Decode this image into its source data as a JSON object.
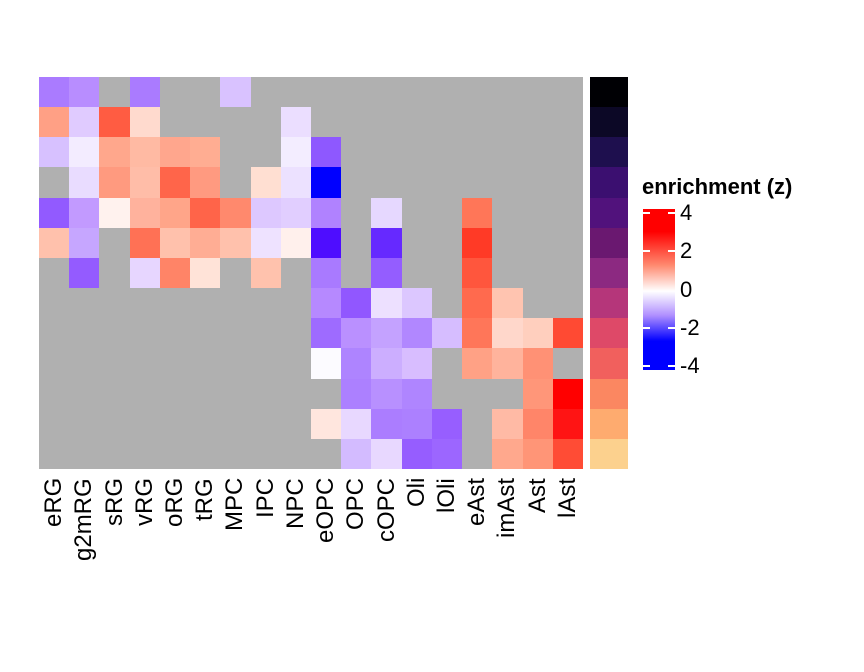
{
  "chart_data": {
    "type": "heatmap",
    "title": "",
    "xlabel": "",
    "ylabel": "",
    "columns": [
      "eRG",
      "g2mRG",
      "sRG",
      "vRG",
      "oRG",
      "tRG",
      "MPC",
      "IPC",
      "NPC",
      "eOPC",
      "OPC",
      "cOPC",
      "Oli",
      "lOli",
      "eAst",
      "imAst",
      "Ast",
      "lAst"
    ],
    "row_count": 13,
    "na_color": "#b0b0b0",
    "legend": {
      "title": "enrichment (z)",
      "ticks": [
        4,
        2,
        0,
        -2,
        -4
      ],
      "tick_labels": [
        "4",
        "2",
        "0",
        "-2",
        "-4"
      ],
      "range": [
        -4.2,
        4.2
      ],
      "colors": {
        "low": "#0000ff",
        "mid": "#ffffff",
        "high": "#ff0000"
      }
    },
    "cell_colors": [
      [
        "#AA7BFF",
        "#B88DFF",
        null,
        "#AA7BFF",
        null,
        null,
        "#D9C2FF",
        null,
        null,
        null,
        null,
        null,
        null,
        null,
        null,
        null,
        null,
        null
      ],
      [
        "#FFA085",
        "#E0CBFF",
        "#FF5C42",
        "#FFDACE",
        null,
        null,
        null,
        null,
        "#EBDEFF",
        null,
        null,
        null,
        null,
        null,
        null,
        null,
        null,
        null
      ],
      [
        "#D7C1FF",
        "#F3ECFF",
        "#FFA78C",
        "#FFBAA3",
        "#FFA68D",
        "#FFAD92",
        null,
        null,
        "#F3EDFF",
        "#8E58FF",
        null,
        null,
        null,
        null,
        null,
        null,
        null,
        null
      ],
      [
        null,
        "#E9DCFF",
        "#FF9A7F",
        "#FFBDA8",
        "#FF654A",
        "#FF9A80",
        null,
        "#FFDFD2",
        "#ECE1FF",
        "#0000FF",
        null,
        null,
        null,
        null,
        null,
        null,
        null,
        null
      ],
      [
        "#925AFF",
        "#C29AFF",
        "#FFF2EE",
        "#FFB29D",
        "#FFA589",
        "#FF6449",
        "#FF896D",
        "#DDC8FF",
        "#E1CEFF",
        "#B082FF",
        null,
        "#E6D8FF",
        null,
        null,
        "#FF7658",
        null,
        null,
        null
      ],
      [
        "#FFC1AC",
        "#C6A6FF",
        null,
        "#FF7155",
        "#FFC1AC",
        "#FFAD94",
        "#FFC1AC",
        "#EEE2FF",
        "#FFF0EC",
        "#4E0DFF",
        null,
        "#6629FF",
        null,
        null,
        "#FF3A26",
        null,
        null,
        null
      ],
      [
        null,
        "#945BFF",
        null,
        "#E7D6FF",
        "#FF8467",
        "#FFE3D8",
        null,
        "#FFC2AD",
        null,
        "#A97AFF",
        null,
        "#945DFF",
        null,
        null,
        "#FF563D",
        null,
        null,
        null
      ],
      [
        null,
        null,
        null,
        null,
        null,
        null,
        null,
        null,
        null,
        "#B689FF",
        "#9157FF",
        "#EDE0FF",
        "#DCC7FF",
        null,
        "#FF6A4E",
        "#FFC4B0",
        null,
        null
      ],
      [
        null,
        null,
        null,
        null,
        null,
        null,
        null,
        null,
        null,
        "#9E6BFF",
        "#BA90FF",
        "#C4A2FF",
        "#B187FF",
        "#D6BDFF",
        "#FF7659",
        "#FFD7CB",
        "#FFCFBE",
        "#FF4A33"
      ],
      [
        null,
        null,
        null,
        null,
        null,
        null,
        null,
        null,
        null,
        "#FCFBFF",
        "#AE84FF",
        "#CCAEFF",
        "#D8BDFF",
        null,
        "#FFA185",
        "#FFB39C",
        "#FF9175",
        null
      ],
      [
        null,
        null,
        null,
        null,
        null,
        null,
        null,
        null,
        null,
        null,
        "#AC80FF",
        "#B890FF",
        "#AF85FF",
        null,
        null,
        null,
        "#FF9679",
        "#FF0000"
      ],
      [
        null,
        null,
        null,
        null,
        null,
        null,
        null,
        null,
        null,
        "#FFE6DE",
        "#E8D8FF",
        "#AB7DFF",
        "#AC80FF",
        "#975EFF",
        null,
        "#FFBAA5",
        "#FF8569",
        "#FF1414"
      ],
      [
        null,
        null,
        null,
        null,
        null,
        null,
        null,
        null,
        null,
        null,
        "#D3BBFF",
        "#E8D8FF",
        "#965DFF",
        "#9C66FF",
        null,
        "#FFA88D",
        "#FF9577",
        "#FF4C35"
      ]
    ],
    "values_estimated": [
      [
        -1.5,
        -1.2,
        null,
        -1.5,
        null,
        null,
        -0.7,
        null,
        null,
        null,
        null,
        null,
        null,
        null,
        null,
        null,
        null,
        null
      ],
      [
        1.5,
        -0.6,
        3.0,
        0.6,
        null,
        null,
        null,
        null,
        -0.4,
        null,
        null,
        null,
        null,
        null,
        null,
        null,
        null,
        null
      ],
      [
        -0.7,
        -0.2,
        1.4,
        1.1,
        1.4,
        1.3,
        null,
        null,
        -0.2,
        -2.2,
        null,
        null,
        null,
        null,
        null,
        null,
        null,
        null
      ],
      [
        null,
        -0.3,
        1.6,
        1.0,
        2.8,
        1.6,
        null,
        0.5,
        -0.4,
        -4.0,
        null,
        null,
        null,
        null,
        null,
        null,
        null,
        null
      ],
      [
        -2.1,
        -1.0,
        0.2,
        1.2,
        1.4,
        2.8,
        1.9,
        -0.6,
        -0.5,
        -1.3,
        null,
        -0.4,
        null,
        null,
        2.4,
        null,
        null,
        null
      ],
      [
        1.0,
        -0.9,
        null,
        2.5,
        1.0,
        1.3,
        1.0,
        -0.3,
        0.2,
        -3.0,
        null,
        -2.5,
        null,
        null,
        3.4,
        null,
        null,
        null
      ],
      [
        null,
        -2.1,
        null,
        -0.4,
        2.1,
        0.4,
        null,
        1.0,
        null,
        -1.4,
        null,
        -2.1,
        null,
        null,
        2.9,
        null,
        null,
        null
      ],
      [
        null,
        null,
        null,
        null,
        null,
        null,
        null,
        null,
        null,
        -1.1,
        -2.2,
        -0.3,
        -0.6,
        null,
        2.6,
        1.0,
        null,
        null
      ],
      [
        null,
        null,
        null,
        null,
        null,
        null,
        null,
        null,
        null,
        -1.8,
        -1.1,
        -0.9,
        -1.3,
        -0.7,
        2.4,
        0.6,
        0.7,
        3.1
      ],
      [
        null,
        null,
        null,
        null,
        null,
        null,
        null,
        null,
        null,
        -0.05,
        -1.3,
        -0.8,
        -0.6,
        null,
        1.5,
        1.2,
        1.8,
        null
      ],
      [
        null,
        null,
        null,
        null,
        null,
        null,
        null,
        null,
        null,
        null,
        -1.3,
        -1.1,
        -1.3,
        null,
        null,
        null,
        1.7,
        4.2
      ],
      [
        null,
        null,
        null,
        null,
        null,
        null,
        null,
        null,
        null,
        0.4,
        -0.4,
        -1.4,
        -1.3,
        -2.0,
        null,
        1.1,
        2.0,
        3.9
      ],
      [
        null,
        null,
        null,
        null,
        null,
        null,
        null,
        null,
        null,
        null,
        -0.7,
        -0.4,
        -2.1,
        -1.9,
        null,
        1.4,
        1.7,
        3.1
      ]
    ],
    "row_annotation_colors": [
      "#000004",
      "#0C0826",
      "#1E0F4E",
      "#3B0F70",
      "#51127C",
      "#6A1870",
      "#8C2981",
      "#B5367A",
      "#DE4968",
      "#F1605D",
      "#FB8761",
      "#FEAB6F",
      "#FCD18E"
    ]
  }
}
